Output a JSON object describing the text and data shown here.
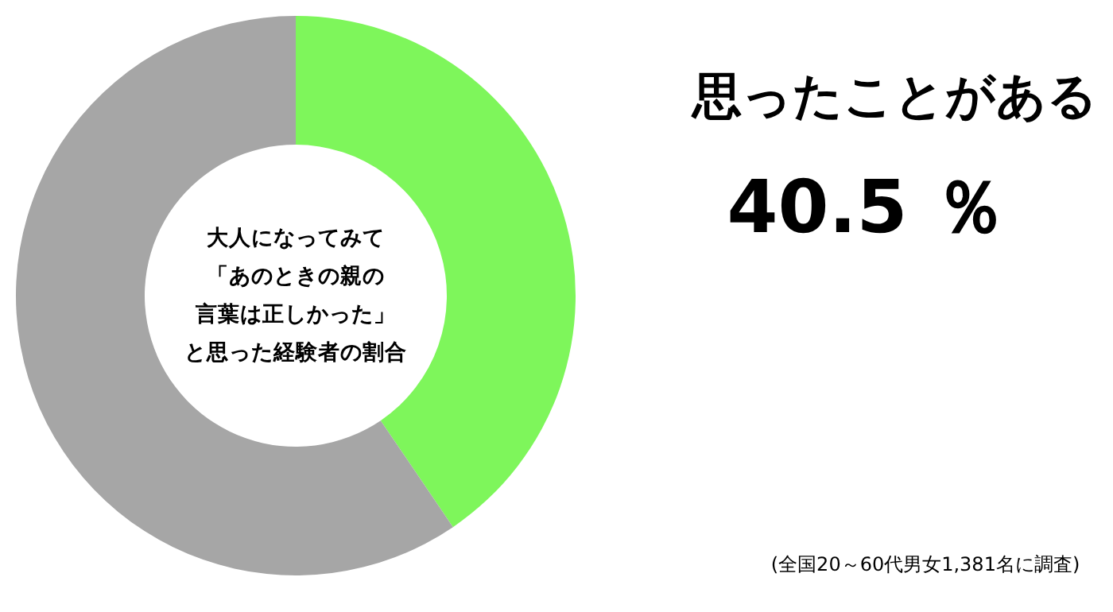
{
  "chart_data": {
    "type": "donut",
    "title": "大人になってみて「あのときの親の言葉は正しかった」と思った経験者の割合",
    "categories": [
      "思ったことがある",
      null
    ],
    "values": [
      40.5,
      59.5
    ],
    "colors": [
      "#7ef65b",
      "#a6a6a6"
    ],
    "value_labels": [
      "40.5 ％",
      null
    ],
    "annotations": [
      "(全国20～60代男女1,381名に調査)"
    ]
  }
}
